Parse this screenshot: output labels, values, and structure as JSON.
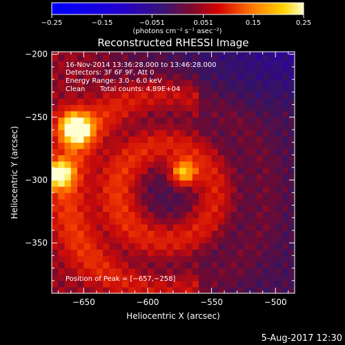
{
  "chart_data": {
    "type": "heatmap",
    "title": "Reconstructed RHESSI Image",
    "xlabel": "Heliocentric X (arcsec)",
    "ylabel": "Heliocentric Y (arcsec)",
    "xlim": [
      -675,
      -485
    ],
    "ylim": [
      -390,
      -198
    ],
    "x_ticks": [
      -650,
      -600,
      -550,
      -500
    ],
    "x_tick_labels": [
      "−650",
      "−600",
      "−550",
      "−500"
    ],
    "y_ticks": [
      -200,
      -250,
      -300,
      -350
    ],
    "y_tick_labels": [
      "−200",
      "−250",
      "−300",
      "−350"
    ],
    "colorbar": {
      "range": [
        -0.25,
        0.25
      ],
      "ticks": [
        -0.25,
        -0.15,
        -0.051,
        0.051,
        0.15,
        0.25
      ],
      "tick_labels": [
        "−0.25",
        "−0.15",
        "−0.051",
        "0.051",
        "0.15",
        "0.25"
      ],
      "unit_label": "(photons cm⁻² s⁻¹ asec⁻²)"
    },
    "annotations": {
      "time_range": "16-Nov-2014 13:36:28.000 to 13:46:28.000",
      "detectors": "Detectors: 3F 6F 9F, Att 0",
      "energy_range": "Energy Range: 3.0 - 6.0 keV",
      "method": "Clean",
      "total_counts": "Total counts: 4.89E+04",
      "peak_position": "Position of Peak = [−657,−258]"
    },
    "sources": [
      {
        "x": -657,
        "y": -258
      },
      {
        "x": -670,
        "y": -295
      },
      {
        "x": -572,
        "y": -294
      }
    ],
    "date_stamp": "5-Aug-2017 12:30"
  }
}
